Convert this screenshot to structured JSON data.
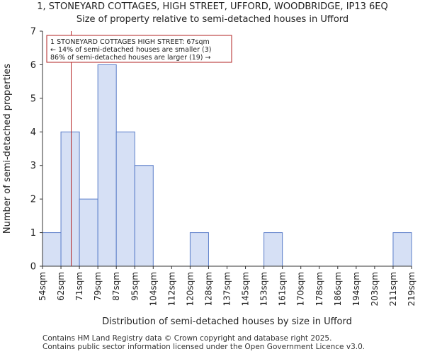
{
  "chart_data": {
    "type": "histogram",
    "title": "1, STONEYARD COTTAGES, HIGH STREET, UFFORD, WOODBRIDGE, IP13 6EQ",
    "subtitle": "Size of property relative to semi-detached houses in Ufford",
    "xlabel": "Distribution of semi-detached houses by size in Ufford",
    "ylabel": "Number of semi-detached properties",
    "bin_edges": [
      54,
      62,
      71,
      79,
      87,
      95,
      104,
      112,
      120,
      128,
      137,
      145,
      153,
      161,
      170,
      178,
      186,
      194,
      203,
      211,
      219
    ],
    "bin_labels": [
      "54sqm",
      "62sqm",
      "71sqm",
      "79sqm",
      "87sqm",
      "95sqm",
      "104sqm",
      "112sqm",
      "120sqm",
      "128sqm",
      "137sqm",
      "145sqm",
      "153sqm",
      "161sqm",
      "170sqm",
      "178sqm",
      "186sqm",
      "194sqm",
      "203sqm",
      "211sqm",
      "219sqm"
    ],
    "values": [
      1,
      4,
      2,
      6,
      4,
      3,
      0,
      0,
      1,
      0,
      0,
      0,
      1,
      0,
      0,
      0,
      0,
      0,
      0,
      1
    ],
    "ylim": [
      0,
      7
    ],
    "yticks": [
      0,
      1,
      2,
      3,
      4,
      5,
      6,
      7
    ],
    "grid": false,
    "bar_color": "#d6e0f5",
    "bar_edge_color": "#5b7ec9",
    "marker": {
      "value": 67,
      "color": "#b22222",
      "annotation": [
        "1 STONEYARD COTTAGES HIGH STREET: 67sqm",
        "← 14% of semi-detached houses are smaller (3)",
        "86% of semi-detached houses are larger (19) →"
      ]
    }
  },
  "footer": {
    "line1": "Contains HM Land Registry data © Crown copyright and database right 2025.",
    "line2": "Contains public sector information licensed under the Open Government Licence v3.0."
  }
}
